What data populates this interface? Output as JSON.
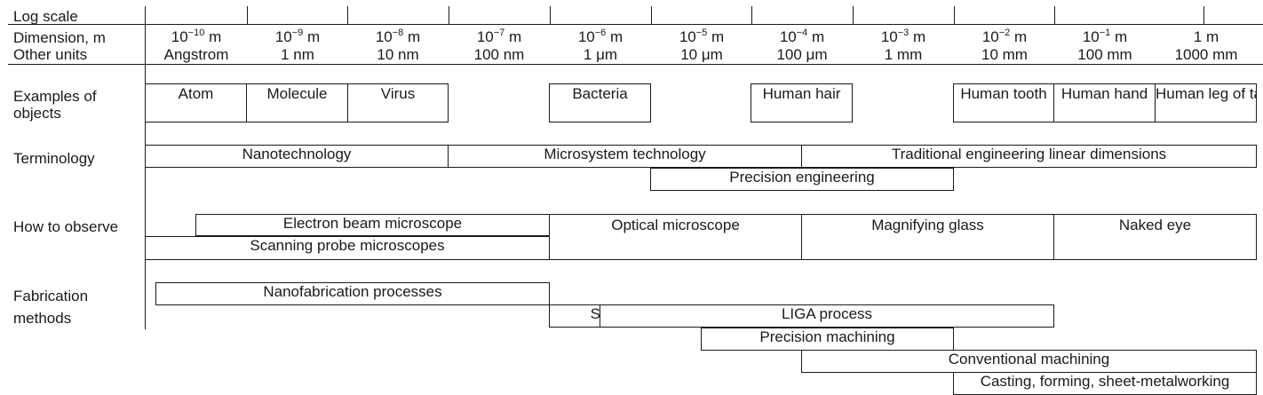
{
  "labels": {
    "log_scale": "Log scale",
    "dimension": "Dimension, m",
    "other_units": "Other units",
    "examples_1": "Examples of",
    "examples_2": "objects",
    "terminology": "Terminology",
    "how_to_observe": "How to observe",
    "fabrication_1": "Fabrication",
    "fabrication_2": "methods"
  },
  "scale": [
    {
      "exp": "−10",
      "unit": "m",
      "other": "Angstrom"
    },
    {
      "exp": "−9",
      "unit": "m",
      "other": "1 nm"
    },
    {
      "exp": "−8",
      "unit": "m",
      "other": "10 nm"
    },
    {
      "exp": "−7",
      "unit": "m",
      "other": "100 nm"
    },
    {
      "exp": "−6",
      "unit": "m",
      "other": "1 μm"
    },
    {
      "exp": "−5",
      "unit": "m",
      "other": "10 μm"
    },
    {
      "exp": "−4",
      "unit": "m",
      "other": "100 μm"
    },
    {
      "exp": "−3",
      "unit": "m",
      "other": "1 mm"
    },
    {
      "exp": "−2",
      "unit": "m",
      "other": "10 mm"
    },
    {
      "exp": "−1",
      "unit": "m",
      "other": "100 mm"
    },
    {
      "exp": "",
      "unit": "1 m",
      "other": "1000 mm"
    }
  ],
  "objects": [
    {
      "text": "Atom",
      "from": -10.5,
      "to": -9.5
    },
    {
      "text": "Molecule",
      "from": -9.5,
      "to": -8.5
    },
    {
      "text": "Virus",
      "from": -8.5,
      "to": -7.5
    },
    {
      "text": "Bacteria",
      "from": -6.5,
      "to": -5.5
    },
    {
      "text": "Human hair",
      "from": -4.5,
      "to": -3.5
    },
    {
      "text": "Human tooth",
      "from": -2.5,
      "to": -1.5
    },
    {
      "text": "Human hand",
      "from": -1.5,
      "to": -0.5
    },
    {
      "text": "Human leg of tall man",
      "from": -0.5,
      "to": 0.5
    }
  ],
  "terminology": [
    {
      "text": "Nanotechnology",
      "from": -10.5,
      "to": -7.5
    },
    {
      "text": "Microsystem technology",
      "from": -7.5,
      "to": -4
    },
    {
      "text": "Traditional engineering linear dimensions",
      "from": -4,
      "to": 0.5
    },
    {
      "text": "Precision engineering",
      "from": -5.5,
      "to": -2.5
    }
  ],
  "observe": [
    {
      "text": "Electron beam microscope",
      "from": -10,
      "to": -6.5
    },
    {
      "text": "Scanning probe microscopes",
      "from": -10.5,
      "to": -6.5
    },
    {
      "text": "Optical microscope",
      "from": -6.5,
      "to": -4
    },
    {
      "text": "Magnifying glass",
      "from": -4,
      "to": -1.5
    },
    {
      "text": "Naked eye",
      "from": -1.5,
      "to": 0.5
    }
  ],
  "fabrication": [
    {
      "text": "Nanofabrication processes",
      "from": -10.4,
      "to": -6.5
    },
    {
      "text": "Silicon layer technologies",
      "from": -6.5,
      "to": -4
    },
    {
      "text": "LIGA process",
      "from": -6,
      "to": -1.5
    },
    {
      "text": "Precision machining",
      "from": -5,
      "to": -2.5
    },
    {
      "text": "Conventional machining",
      "from": -4,
      "to": 0.5
    },
    {
      "text": "Casting, forming, sheet-metalworking",
      "from": -2.5,
      "to": 0.5
    }
  ]
}
